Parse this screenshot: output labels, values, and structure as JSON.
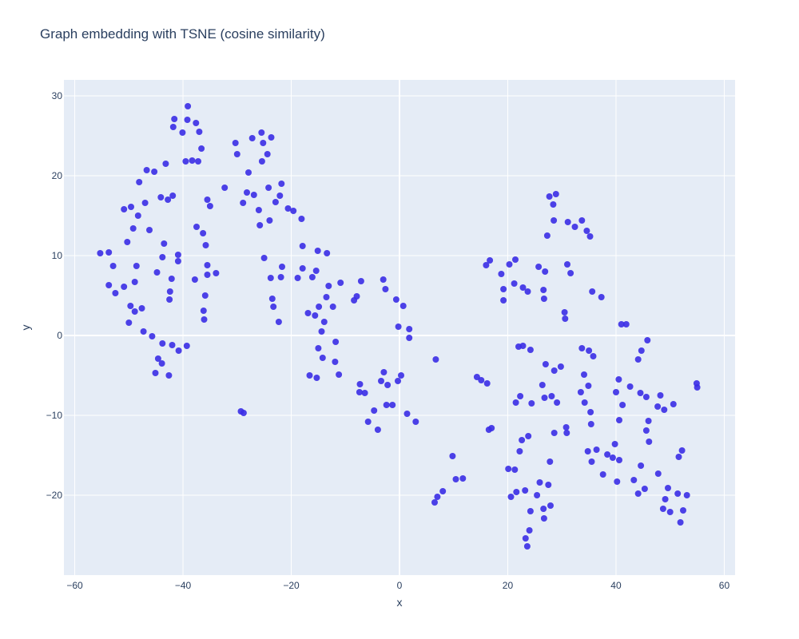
{
  "chart_data": {
    "type": "scatter",
    "title": "Graph embedding with TSNE (cosine similarity)",
    "xlabel": "x",
    "ylabel": "y",
    "xlim": [
      -62,
      62
    ],
    "ylim": [
      -30,
      32
    ],
    "xticks": [
      -60,
      -40,
      -20,
      0,
      20,
      40,
      60
    ],
    "yticks": [
      -20,
      -10,
      0,
      10,
      20,
      30
    ],
    "xtick_labels": [
      "−60",
      "−40",
      "−20",
      "0",
      "20",
      "40",
      "60"
    ],
    "ytick_labels": [
      "−20",
      "−10",
      "0",
      "10",
      "20",
      "30"
    ],
    "grid": true,
    "marker_color": "#3a2ee6",
    "plot_bg": "#e5ecf6",
    "grid_color": "#ffffff",
    "series": [
      {
        "points": [
          [
            -55.3,
            10.3
          ],
          [
            -53.7,
            10.4
          ],
          [
            -53.7,
            6.3
          ],
          [
            -52.9,
            8.7
          ],
          [
            -52.5,
            5.3
          ],
          [
            -50.9,
            15.8
          ],
          [
            -50.9,
            6.1
          ],
          [
            -50.3,
            11.7
          ],
          [
            -50.0,
            1.6
          ],
          [
            -49.7,
            3.7
          ],
          [
            -49.6,
            16.1
          ],
          [
            -49.2,
            13.4
          ],
          [
            -48.9,
            6.7
          ],
          [
            -48.9,
            3.0
          ],
          [
            -48.6,
            8.7
          ],
          [
            -48.3,
            15.0
          ],
          [
            -48.1,
            19.2
          ],
          [
            -47.6,
            3.4
          ],
          [
            -47.3,
            0.5
          ],
          [
            -47.0,
            16.6
          ],
          [
            -46.7,
            20.7
          ],
          [
            -46.2,
            13.2
          ],
          [
            -45.7,
            -0.1
          ],
          [
            -45.3,
            20.5
          ],
          [
            -45.1,
            -4.7
          ],
          [
            -44.8,
            7.9
          ],
          [
            -44.6,
            -2.9
          ],
          [
            -44.1,
            17.3
          ],
          [
            -43.9,
            -3.5
          ],
          [
            -43.8,
            -1.0
          ],
          [
            -43.8,
            9.8
          ],
          [
            -43.5,
            11.5
          ],
          [
            -43.2,
            21.5
          ],
          [
            -42.8,
            17.0
          ],
          [
            -42.6,
            -5.0
          ],
          [
            -42.5,
            4.5
          ],
          [
            -42.4,
            5.5
          ],
          [
            -42.1,
            7.1
          ],
          [
            -42.0,
            -1.2
          ],
          [
            -41.9,
            17.5
          ],
          [
            -41.8,
            26.1
          ],
          [
            -41.6,
            27.1
          ],
          [
            -40.9,
            9.3
          ],
          [
            -40.9,
            10.1
          ],
          [
            -40.8,
            -1.9
          ],
          [
            -40.1,
            25.4
          ],
          [
            -39.5,
            21.8
          ],
          [
            -39.3,
            -1.3
          ],
          [
            -39.2,
            27.0
          ],
          [
            -39.1,
            28.7
          ],
          [
            -38.3,
            21.9
          ],
          [
            -37.8,
            7.0
          ],
          [
            -37.6,
            26.6
          ],
          [
            -37.5,
            13.6
          ],
          [
            -37.2,
            21.8
          ],
          [
            -37.0,
            25.5
          ],
          [
            -36.6,
            23.4
          ],
          [
            -36.3,
            12.8
          ],
          [
            -36.2,
            3.1
          ],
          [
            -36.1,
            2.0
          ],
          [
            -35.9,
            5.0
          ],
          [
            -35.8,
            11.3
          ],
          [
            -35.5,
            7.6
          ],
          [
            -35.5,
            8.8
          ],
          [
            -35.5,
            17.0
          ],
          [
            -35.0,
            16.2
          ],
          [
            -33.9,
            7.8
          ],
          [
            -32.3,
            18.5
          ],
          [
            -30.3,
            24.1
          ],
          [
            -30.0,
            22.7
          ],
          [
            -29.3,
            -9.5
          ],
          [
            -28.9,
            16.6
          ],
          [
            -28.8,
            -9.7
          ],
          [
            -28.2,
            17.9
          ],
          [
            -27.9,
            20.4
          ],
          [
            -27.2,
            24.7
          ],
          [
            -26.9,
            17.6
          ],
          [
            -26.0,
            15.7
          ],
          [
            -25.8,
            13.8
          ],
          [
            -25.5,
            25.4
          ],
          [
            -25.4,
            21.8
          ],
          [
            -25.2,
            24.1
          ],
          [
            -25.0,
            9.7
          ],
          [
            -24.4,
            22.7
          ],
          [
            -24.2,
            18.5
          ],
          [
            -24.0,
            14.4
          ],
          [
            -23.8,
            7.2
          ],
          [
            -23.7,
            24.8
          ],
          [
            -23.5,
            4.6
          ],
          [
            -23.3,
            3.6
          ],
          [
            -22.9,
            16.7
          ],
          [
            -22.3,
            1.7
          ],
          [
            -22.1,
            17.5
          ],
          [
            -21.9,
            7.3
          ],
          [
            -21.8,
            19.0
          ],
          [
            -21.7,
            8.6
          ],
          [
            -20.6,
            15.9
          ],
          [
            -19.6,
            15.6
          ],
          [
            -18.8,
            7.2
          ],
          [
            -18.1,
            14.6
          ],
          [
            -17.9,
            11.2
          ],
          [
            -17.9,
            8.4
          ],
          [
            -16.9,
            2.8
          ],
          [
            -16.6,
            -5.0
          ],
          [
            -16.1,
            7.3
          ],
          [
            -15.6,
            2.5
          ],
          [
            -15.4,
            8.1
          ],
          [
            -15.3,
            -5.3
          ],
          [
            -15.1,
            10.6
          ],
          [
            -15.0,
            -1.6
          ],
          [
            -14.9,
            3.6
          ],
          [
            -14.4,
            0.5
          ],
          [
            -14.2,
            -2.8
          ],
          [
            -13.9,
            1.7
          ],
          [
            -13.5,
            4.8
          ],
          [
            -13.4,
            10.3
          ],
          [
            -13.1,
            6.2
          ],
          [
            -12.3,
            3.6
          ],
          [
            -11.9,
            -3.3
          ],
          [
            -11.8,
            -0.8
          ],
          [
            -11.2,
            -4.9
          ],
          [
            -10.9,
            6.6
          ],
          [
            -8.4,
            4.4
          ],
          [
            -7.9,
            4.9
          ],
          [
            -7.4,
            -7.1
          ],
          [
            -7.3,
            -6.1
          ],
          [
            -7.1,
            6.8
          ],
          [
            -6.4,
            -7.2
          ],
          [
            -5.8,
            -10.8
          ],
          [
            -4.7,
            -9.4
          ],
          [
            -4.0,
            -11.8
          ],
          [
            -3.4,
            -5.7
          ],
          [
            -3.0,
            7.0
          ],
          [
            -2.9,
            -4.6
          ],
          [
            -2.6,
            5.8
          ],
          [
            -2.4,
            -8.7
          ],
          [
            -2.2,
            -6.2
          ],
          [
            -1.3,
            -8.7
          ],
          [
            -0.6,
            4.5
          ],
          [
            -0.3,
            -5.7
          ],
          [
            -0.2,
            1.1
          ],
          [
            0.3,
            -5.0
          ],
          [
            0.7,
            3.7
          ],
          [
            1.4,
            -9.8
          ],
          [
            1.8,
            0.8
          ],
          [
            1.8,
            -0.3
          ],
          [
            3.0,
            -10.8
          ],
          [
            6.5,
            -20.9
          ],
          [
            6.7,
            -3.0
          ],
          [
            7.0,
            -20.2
          ],
          [
            8.0,
            -19.5
          ],
          [
            9.8,
            -15.1
          ],
          [
            10.4,
            -18.0
          ],
          [
            11.7,
            -17.9
          ],
          [
            14.3,
            -5.2
          ],
          [
            15.1,
            -5.6
          ],
          [
            16.0,
            8.8
          ],
          [
            16.2,
            -6.0
          ],
          [
            16.5,
            -11.8
          ],
          [
            16.7,
            9.4
          ],
          [
            17.0,
            -11.6
          ],
          [
            18.8,
            7.7
          ],
          [
            19.2,
            5.8
          ],
          [
            19.2,
            4.4
          ],
          [
            20.1,
            -16.7
          ],
          [
            20.3,
            8.9
          ],
          [
            20.6,
            -20.2
          ],
          [
            21.2,
            6.5
          ],
          [
            21.3,
            -16.8
          ],
          [
            21.4,
            9.5
          ],
          [
            21.5,
            -8.4
          ],
          [
            21.6,
            -19.6
          ],
          [
            22.0,
            -1.4
          ],
          [
            22.2,
            -14.5
          ],
          [
            22.3,
            -7.6
          ],
          [
            22.6,
            -13.1
          ],
          [
            22.8,
            6.0
          ],
          [
            22.8,
            -1.3
          ],
          [
            23.2,
            -19.4
          ],
          [
            23.3,
            -25.4
          ],
          [
            23.6,
            -26.4
          ],
          [
            23.7,
            5.5
          ],
          [
            23.8,
            -12.6
          ],
          [
            24.0,
            -24.4
          ],
          [
            24.2,
            -1.8
          ],
          [
            24.2,
            -22.0
          ],
          [
            24.4,
            -8.5
          ],
          [
            25.4,
            -20.0
          ],
          [
            25.7,
            8.6
          ],
          [
            25.9,
            -18.4
          ],
          [
            26.4,
            -6.2
          ],
          [
            26.6,
            -21.7
          ],
          [
            26.6,
            5.7
          ],
          [
            26.7,
            4.6
          ],
          [
            26.7,
            -22.9
          ],
          [
            26.8,
            -7.8
          ],
          [
            26.9,
            8.0
          ],
          [
            27.0,
            -3.6
          ],
          [
            27.3,
            12.5
          ],
          [
            27.5,
            -18.7
          ],
          [
            27.7,
            17.4
          ],
          [
            27.8,
            -15.8
          ],
          [
            27.9,
            -21.3
          ],
          [
            28.1,
            -7.6
          ],
          [
            28.4,
            16.4
          ],
          [
            28.5,
            14.4
          ],
          [
            28.6,
            -4.4
          ],
          [
            28.6,
            -12.2
          ],
          [
            28.9,
            17.7
          ],
          [
            29.1,
            -8.4
          ],
          [
            29.8,
            -3.9
          ],
          [
            30.5,
            2.9
          ],
          [
            30.6,
            2.1
          ],
          [
            30.8,
            -11.5
          ],
          [
            30.9,
            -12.2
          ],
          [
            31.0,
            8.9
          ],
          [
            31.1,
            14.2
          ],
          [
            31.6,
            7.8
          ],
          [
            32.4,
            13.6
          ],
          [
            33.5,
            -7.1
          ],
          [
            33.7,
            14.4
          ],
          [
            33.7,
            -1.6
          ],
          [
            34.1,
            -4.9
          ],
          [
            34.2,
            -8.4
          ],
          [
            34.6,
            13.1
          ],
          [
            34.8,
            -14.5
          ],
          [
            34.9,
            -6.3
          ],
          [
            35.0,
            -1.9
          ],
          [
            35.2,
            12.4
          ],
          [
            35.3,
            -9.6
          ],
          [
            35.4,
            -11.1
          ],
          [
            35.5,
            -15.8
          ],
          [
            35.6,
            5.5
          ],
          [
            35.8,
            -2.6
          ],
          [
            36.4,
            -14.3
          ],
          [
            37.3,
            4.8
          ],
          [
            37.6,
            -17.4
          ],
          [
            38.4,
            -14.9
          ],
          [
            39.4,
            -15.3
          ],
          [
            39.8,
            -13.6
          ],
          [
            40.0,
            -7.1
          ],
          [
            40.2,
            -18.3
          ],
          [
            40.5,
            -5.5
          ],
          [
            40.6,
            -15.6
          ],
          [
            40.6,
            -10.6
          ],
          [
            41.0,
            1.4
          ],
          [
            41.2,
            -8.7
          ],
          [
            41.9,
            1.4
          ],
          [
            42.6,
            -6.4
          ],
          [
            43.3,
            -18.1
          ],
          [
            44.1,
            -19.8
          ],
          [
            44.1,
            -3.0
          ],
          [
            44.5,
            -7.2
          ],
          [
            44.6,
            -16.3
          ],
          [
            44.7,
            -1.9
          ],
          [
            45.3,
            -19.2
          ],
          [
            45.6,
            -7.7
          ],
          [
            45.6,
            -11.9
          ],
          [
            45.8,
            -0.6
          ],
          [
            46.0,
            -10.7
          ],
          [
            46.1,
            -13.3
          ],
          [
            47.7,
            -8.9
          ],
          [
            47.8,
            -17.3
          ],
          [
            48.2,
            -7.5
          ],
          [
            48.7,
            -21.7
          ],
          [
            48.9,
            -9.3
          ],
          [
            49.1,
            -20.5
          ],
          [
            49.6,
            -19.1
          ],
          [
            50.0,
            -22.1
          ],
          [
            50.6,
            -8.6
          ],
          [
            51.4,
            -19.8
          ],
          [
            51.6,
            -15.2
          ],
          [
            51.9,
            -23.4
          ],
          [
            52.2,
            -14.4
          ],
          [
            52.4,
            -21.9
          ],
          [
            53.1,
            -20.0
          ],
          [
            54.9,
            -6.0
          ],
          [
            55.0,
            -6.5
          ]
        ]
      }
    ]
  }
}
